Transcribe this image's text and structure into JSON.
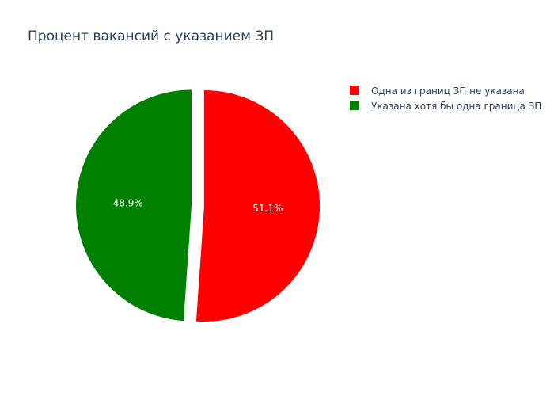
{
  "chart_data": {
    "type": "pie",
    "title": "Процент вакансий с указанием ЗП",
    "labels": [
      "Одна из границ ЗП не указана",
      "Указана хотя бы одна граница ЗП"
    ],
    "values": [
      51.1,
      48.9
    ],
    "percent_labels": [
      "51.1%",
      "48.9%"
    ],
    "colors": [
      "#ff0000",
      "#008000"
    ],
    "pull": [
      0,
      0.1
    ],
    "start_angle_deg": 90,
    "direction": "clockwise",
    "legend_position": "top-right",
    "legend": [
      {
        "label": "Одна из границ ЗП не указана",
        "color": "#ff0000"
      },
      {
        "label": "Указана хотя бы одна граница ЗП",
        "color": "#008000"
      }
    ]
  }
}
